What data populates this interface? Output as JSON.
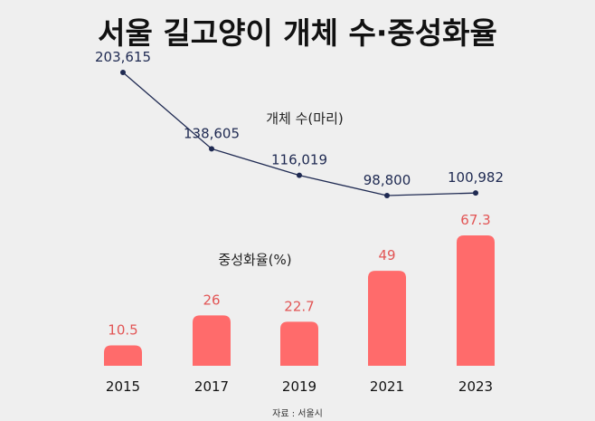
{
  "chart_data": {
    "type": "bar+line",
    "title": "서울 길고양이 개체 수·중성화율",
    "categories": [
      "2015",
      "2017",
      "2019",
      "2021",
      "2023"
    ],
    "series": [
      {
        "name": "개체 수(마리)",
        "type": "line",
        "values": [
          203615,
          138605,
          116019,
          98800,
          100982
        ],
        "labels": [
          "203,615",
          "138,605",
          "116,019",
          "98,800",
          "100,982"
        ],
        "color": "#1f2a52"
      },
      {
        "name": "중성화율(%)",
        "type": "bar",
        "values": [
          10.5,
          26,
          22.7,
          49,
          67.3
        ],
        "labels": [
          "10.5",
          "26",
          "22.7",
          "49",
          "67.3"
        ],
        "color": "#ff6b6b",
        "label_color": "#e25555"
      }
    ],
    "source": "자료 : 서울시"
  }
}
